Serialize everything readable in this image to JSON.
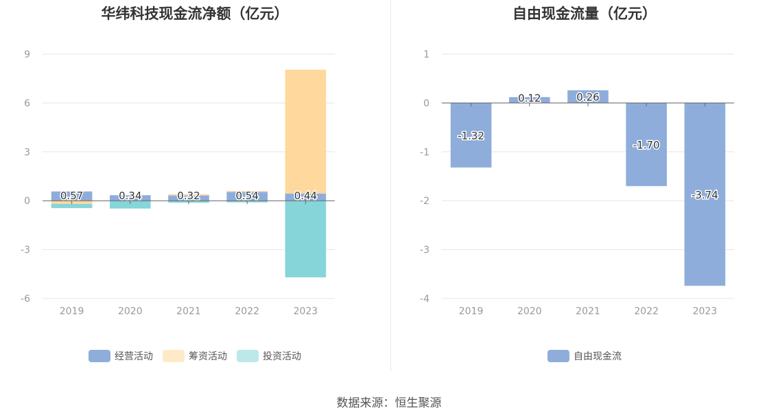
{
  "source": "数据来源：恒生聚源",
  "chart_data": [
    {
      "type": "bar",
      "stacked": true,
      "title": "华纬科技现金流净额（亿元）",
      "categories": [
        "2019",
        "2020",
        "2021",
        "2022",
        "2023"
      ],
      "ylim": [
        -6,
        9
      ],
      "yticks": [
        9,
        6,
        3,
        0,
        -3,
        -6
      ],
      "ytick_labels": [
        "9",
        "6",
        "3",
        "0",
        "-3",
        "-6"
      ],
      "grid": true,
      "legend_position": "bottom",
      "series": [
        {
          "name": "经营活动",
          "color": "#8eaddb",
          "values": [
            0.57,
            0.34,
            0.32,
            0.54,
            0.44
          ]
        },
        {
          "name": "筹资活动",
          "color": "#fed89c",
          "values": [
            -0.2,
            0.0,
            0.08,
            0.06,
            7.6
          ]
        },
        {
          "name": "投资活动",
          "color": "#86d5d9",
          "values": [
            -0.25,
            -0.48,
            -0.12,
            -0.1,
            -4.7
          ]
        }
      ],
      "data_labels": [
        "0.57",
        "0.34",
        "0.32",
        "0.54",
        "0.44"
      ]
    },
    {
      "type": "bar",
      "title": "自由现金流量（亿元）",
      "categories": [
        "2019",
        "2020",
        "2021",
        "2022",
        "2023"
      ],
      "ylim": [
        -4,
        1
      ],
      "yticks": [
        1,
        0,
        -1,
        -2,
        -3,
        -4
      ],
      "ytick_labels": [
        "1",
        "0",
        "-1",
        "-2",
        "-3",
        "-4"
      ],
      "grid": true,
      "legend_position": "bottom",
      "series": [
        {
          "name": "自由现金流",
          "color": "#8eaddb",
          "values": [
            -1.32,
            0.12,
            0.26,
            -1.7,
            -3.74
          ]
        }
      ],
      "data_labels": [
        "-1.32",
        "0.12",
        "0.26",
        "-1.70",
        "-3.74"
      ]
    }
  ]
}
